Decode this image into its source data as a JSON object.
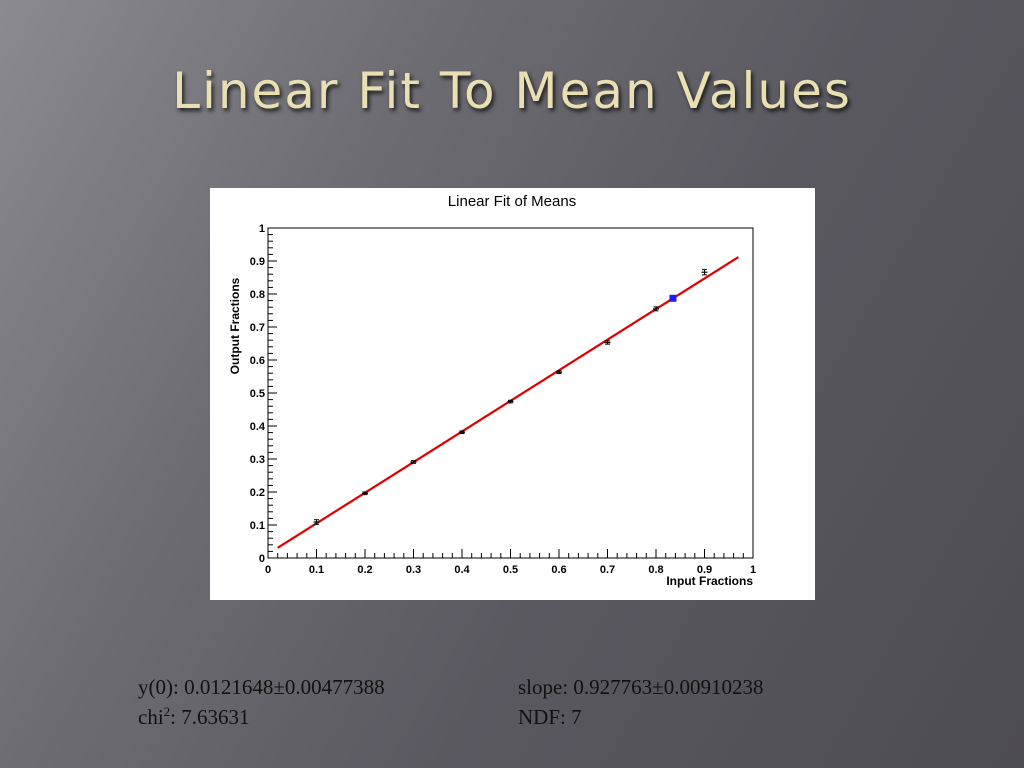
{
  "slide": {
    "title": "Linear Fit To Mean Values"
  },
  "fit_results": {
    "y0_label": "y(0): ",
    "y0_value": "0.0121648±0.00477388",
    "slope_label": "slope: ",
    "slope_value": "0.927763±0.00910238",
    "chi_label": "chi",
    "chi_sup": "2",
    "chi_value": ": 7.63631",
    "ndf_label": "NDF: ",
    "ndf_value": "7"
  },
  "chart_data": {
    "type": "scatter",
    "title": "Linear Fit of Means",
    "xlabel": "Input Fractions",
    "ylabel": "Output Fractions",
    "xlim": [
      0,
      1
    ],
    "ylim": [
      0,
      1
    ],
    "x_ticks": [
      "0",
      "0.1",
      "0.2",
      "0.3",
      "0.4",
      "0.5",
      "0.6",
      "0.7",
      "0.8",
      "0.9",
      "1"
    ],
    "y_ticks": [
      "0",
      "0.1",
      "0.2",
      "0.3",
      "0.4",
      "0.5",
      "0.6",
      "0.7",
      "0.8",
      "0.9",
      "1"
    ],
    "series": [
      {
        "points": [
          {
            "x": 0.1,
            "y": 0.109,
            "err": 0.007
          },
          {
            "x": 0.2,
            "y": 0.196,
            "err": 0.004
          },
          {
            "x": 0.3,
            "y": 0.291,
            "err": 0.004
          },
          {
            "x": 0.4,
            "y": 0.381,
            "err": 0.004
          },
          {
            "x": 0.5,
            "y": 0.474,
            "err": 0.004
          },
          {
            "x": 0.6,
            "y": 0.563,
            "err": 0.004
          },
          {
            "x": 0.7,
            "y": 0.653,
            "err": 0.005
          },
          {
            "x": 0.8,
            "y": 0.755,
            "err": 0.006
          },
          {
            "x": 0.9,
            "y": 0.866,
            "err": 0.008
          }
        ]
      }
    ],
    "fit": {
      "intercept": 0.0121648,
      "slope": 0.927763,
      "x_range": [
        0.02,
        0.97
      ],
      "color": "#e00000"
    },
    "highlight_point": {
      "x": 0.835,
      "y": 0.787,
      "color": "#1a1aff"
    }
  }
}
